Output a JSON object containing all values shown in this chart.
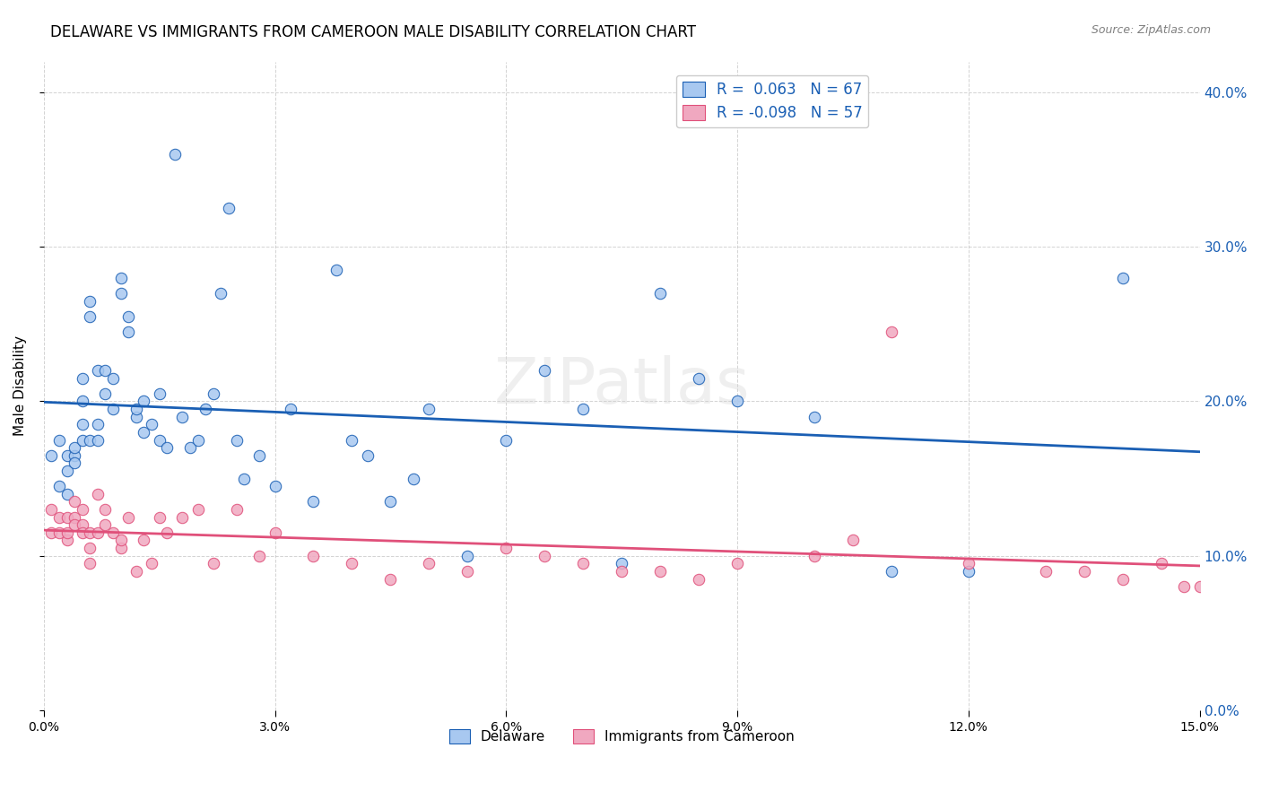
{
  "title": "DELAWARE VS IMMIGRANTS FROM CAMEROON MALE DISABILITY CORRELATION CHART",
  "source": "Source: ZipAtlas.com",
  "ylabel": "Male Disability",
  "xlim": [
    0.0,
    0.15
  ],
  "ylim": [
    0.0,
    0.42
  ],
  "xticks": [
    0.0,
    0.03,
    0.06,
    0.09,
    0.12,
    0.15
  ],
  "yticks": [
    0.0,
    0.1,
    0.2,
    0.3,
    0.4
  ],
  "delaware_color": "#a8c8f0",
  "cameroon_color": "#f0a8c0",
  "delaware_line_color": "#1a5fb4",
  "cameroon_line_color": "#e0507a",
  "delaware_R": 0.063,
  "delaware_N": 67,
  "cameroon_R": -0.098,
  "cameroon_N": 57,
  "watermark": "ZIPatlas",
  "delaware_x": [
    0.001,
    0.002,
    0.002,
    0.003,
    0.003,
    0.003,
    0.004,
    0.004,
    0.004,
    0.005,
    0.005,
    0.005,
    0.005,
    0.006,
    0.006,
    0.006,
    0.007,
    0.007,
    0.007,
    0.008,
    0.008,
    0.009,
    0.009,
    0.01,
    0.01,
    0.011,
    0.011,
    0.012,
    0.012,
    0.013,
    0.013,
    0.014,
    0.015,
    0.015,
    0.016,
    0.017,
    0.018,
    0.019,
    0.02,
    0.021,
    0.022,
    0.023,
    0.024,
    0.025,
    0.026,
    0.028,
    0.03,
    0.032,
    0.035,
    0.038,
    0.04,
    0.042,
    0.045,
    0.048,
    0.05,
    0.055,
    0.06,
    0.065,
    0.07,
    0.075,
    0.08,
    0.085,
    0.09,
    0.1,
    0.11,
    0.12,
    0.14
  ],
  "delaware_y": [
    0.165,
    0.175,
    0.145,
    0.165,
    0.155,
    0.14,
    0.165,
    0.17,
    0.16,
    0.185,
    0.215,
    0.2,
    0.175,
    0.175,
    0.265,
    0.255,
    0.22,
    0.185,
    0.175,
    0.22,
    0.205,
    0.215,
    0.195,
    0.28,
    0.27,
    0.255,
    0.245,
    0.19,
    0.195,
    0.2,
    0.18,
    0.185,
    0.175,
    0.205,
    0.17,
    0.36,
    0.19,
    0.17,
    0.175,
    0.195,
    0.205,
    0.27,
    0.325,
    0.175,
    0.15,
    0.165,
    0.145,
    0.195,
    0.135,
    0.285,
    0.175,
    0.165,
    0.135,
    0.15,
    0.195,
    0.1,
    0.175,
    0.22,
    0.195,
    0.095,
    0.27,
    0.215,
    0.2,
    0.19,
    0.09,
    0.09,
    0.28
  ],
  "cameroon_x": [
    0.001,
    0.001,
    0.002,
    0.002,
    0.003,
    0.003,
    0.003,
    0.004,
    0.004,
    0.004,
    0.005,
    0.005,
    0.005,
    0.006,
    0.006,
    0.006,
    0.007,
    0.007,
    0.008,
    0.008,
    0.009,
    0.01,
    0.01,
    0.011,
    0.012,
    0.013,
    0.014,
    0.015,
    0.016,
    0.018,
    0.02,
    0.022,
    0.025,
    0.028,
    0.03,
    0.035,
    0.04,
    0.045,
    0.05,
    0.055,
    0.06,
    0.065,
    0.07,
    0.075,
    0.08,
    0.085,
    0.09,
    0.1,
    0.105,
    0.11,
    0.12,
    0.13,
    0.135,
    0.14,
    0.145,
    0.148,
    0.15
  ],
  "cameroon_y": [
    0.115,
    0.13,
    0.115,
    0.125,
    0.11,
    0.125,
    0.115,
    0.125,
    0.135,
    0.12,
    0.12,
    0.115,
    0.13,
    0.095,
    0.115,
    0.105,
    0.14,
    0.115,
    0.12,
    0.13,
    0.115,
    0.105,
    0.11,
    0.125,
    0.09,
    0.11,
    0.095,
    0.125,
    0.115,
    0.125,
    0.13,
    0.095,
    0.13,
    0.1,
    0.115,
    0.1,
    0.095,
    0.085,
    0.095,
    0.09,
    0.105,
    0.1,
    0.095,
    0.09,
    0.09,
    0.085,
    0.095,
    0.1,
    0.11,
    0.245,
    0.095,
    0.09,
    0.09,
    0.085,
    0.095,
    0.08,
    0.08
  ]
}
